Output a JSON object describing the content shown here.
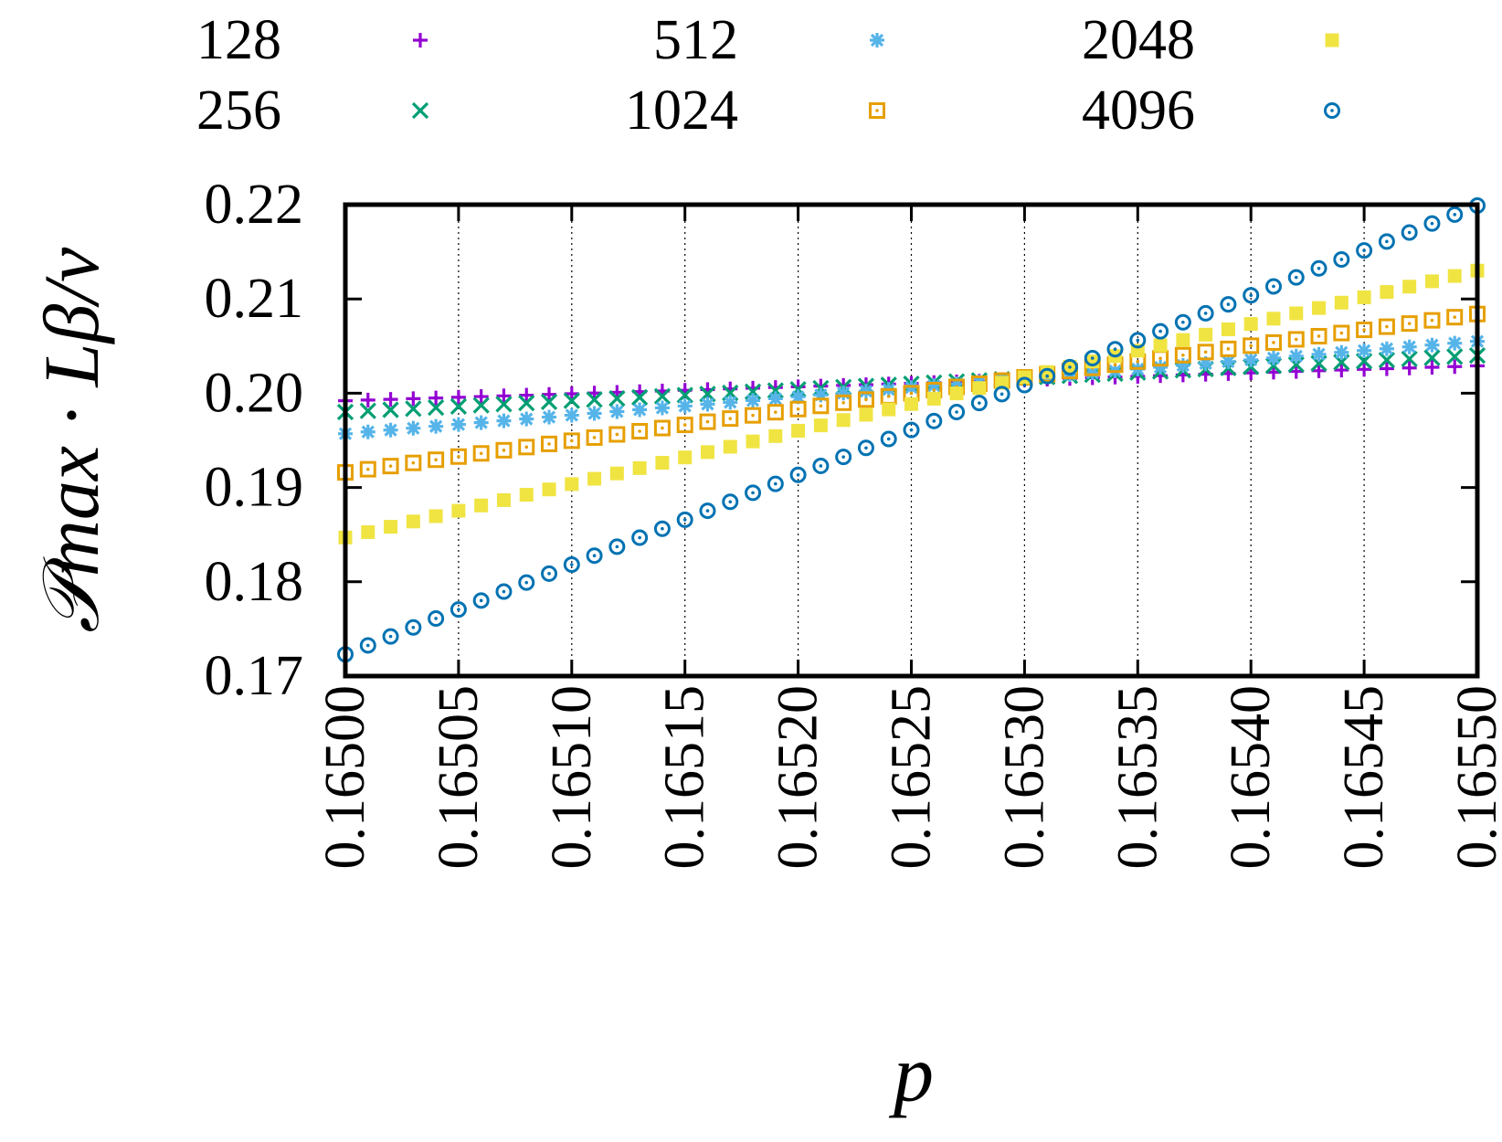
{
  "chart_data": {
    "type": "scatter",
    "title": "",
    "xlabel": "p",
    "ylabel": "𝒫max · Lβ/ν",
    "xlim": [
      0.165,
      0.1655
    ],
    "ylim": [
      0.17,
      0.22
    ],
    "x_ticks": [
      "0.16500",
      "0.16505",
      "0.16510",
      "0.16515",
      "0.16520",
      "0.16525",
      "0.16530",
      "0.16535",
      "0.16540",
      "0.16545",
      "0.16550"
    ],
    "y_ticks": [
      "0.17",
      "0.18",
      "0.19",
      "0.20",
      "0.21",
      "0.22"
    ],
    "grid": "vertical dotted lines at x ticks",
    "legend_position": "top, above plot",
    "points_per_series": 51,
    "x_step": 1e-05,
    "series": [
      {
        "name": "128",
        "marker": "plus",
        "color": "#9400d3",
        "y_start": 0.1992,
        "y_end": 0.2029
      },
      {
        "name": "256",
        "marker": "cross",
        "color": "#009e73",
        "y_start": 0.198,
        "y_end": 0.204
      },
      {
        "name": "512",
        "marker": "asterisk",
        "color": "#56b4e9",
        "y_start": 0.1957,
        "y_end": 0.2055
      },
      {
        "name": "1024",
        "marker": "open-square-dot",
        "color": "#e69f00",
        "y_start": 0.1916,
        "y_end": 0.2084
      },
      {
        "name": "2048",
        "marker": "filled-square",
        "color": "#f0e442",
        "y_start": 0.1847,
        "y_end": 0.213
      },
      {
        "name": "4096",
        "marker": "open-circle-dot",
        "color": "#0072b2",
        "y_start": 0.1723,
        "y_end": 0.2199
      }
    ]
  }
}
